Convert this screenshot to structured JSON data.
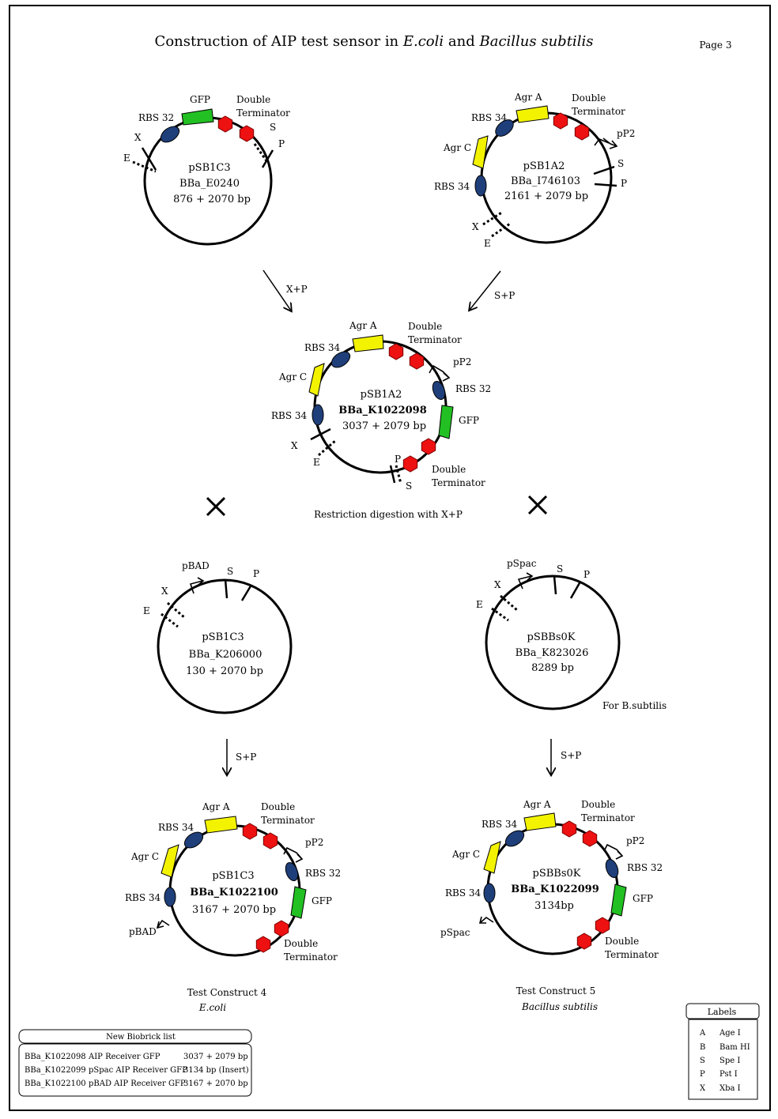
{
  "title": {
    "prefix": "Construction of AIP test sensor in",
    "org1": "E.coli",
    "conj": "and",
    "org2": "Bacillus subtilis"
  },
  "page_label": "Page 3",
  "plasmid1": {
    "backbone": "pSB1C3",
    "part": "BBa_E0240",
    "size": "876 + 2070 bp",
    "labels": {
      "gfp": "GFP",
      "rbs": "RBS 32",
      "term1": "Double",
      "term2": "Terminator",
      "x": "X",
      "e": "E",
      "s": "S",
      "p": "P"
    }
  },
  "plasmid2": {
    "backbone": "pSB1A2",
    "part": "BBa_I746103",
    "size": "2161 + 2079 bp",
    "labels": {
      "agra": "Agr A",
      "rbs34a": "RBS 34",
      "agrc": "Agr C",
      "rbs34b": "RBS 34",
      "term1": "Double",
      "term2": "Terminator",
      "pp2": "pP2",
      "s": "S",
      "p": "P",
      "x": "X",
      "e": "E"
    }
  },
  "arrow1_label": "X+P",
  "arrow2_label": "S+P",
  "plasmid3": {
    "backbone": "pSB1A2",
    "part": "BBa_K1022098",
    "size": "3037 + 2079 bp",
    "labels": {
      "agra": "Agr A",
      "rbs34a": "RBS 34",
      "agrc": "Agr C",
      "rbs34b": "RBS 34",
      "term1": "Double",
      "term2": "Terminator",
      "pp2": "pP2",
      "rbs32": "RBS 32",
      "gfp": "GFP",
      "term3": "Double",
      "term4": "Terminator",
      "x": "X",
      "e": "E",
      "p": "P",
      "s": "S"
    }
  },
  "digestion_label": "Restriction digestion with X+P",
  "plasmid4": {
    "backbone": "pSB1C3",
    "part": "BBa_K206000",
    "size": "130 + 2070 bp",
    "labels": {
      "pbad": "pBAD",
      "x": "X",
      "e": "E",
      "s": "S",
      "p": "P"
    }
  },
  "plasmid5": {
    "backbone": "pSBBs0K",
    "part": "BBa_K823026",
    "size": "8289 bp",
    "note": "For B.subtilis",
    "labels": {
      "pspac": "pSpac",
      "x": "X",
      "e": "E",
      "s": "S",
      "p": "P"
    }
  },
  "arrow3_label": "S+P",
  "arrow4_label": "S+P",
  "plasmid6": {
    "backbone": "pSB1C3",
    "part": "BBa_K1022100",
    "size": "3167 + 2070 bp",
    "labels": {
      "agra": "Agr A",
      "rbs34a": "RBS 34",
      "agrc": "Agr C",
      "rbs34b": "RBS 34",
      "pbad": "pBAD",
      "term1": "Double",
      "term2": "Terminator",
      "pp2": "pP2",
      "rbs32": "RBS 32",
      "gfp": "GFP",
      "term3": "Double",
      "term4": "Terminator"
    },
    "caption1": "Test Construct 4",
    "caption2": "E.coli"
  },
  "plasmid7": {
    "backbone": "pSBBs0K",
    "part": "BBa_K1022099",
    "size": "3134bp",
    "labels": {
      "agra": "Agr A",
      "rbs34a": "RBS 34",
      "agrc": "Agr C",
      "rbs34b": "RBS 34",
      "pspac": "pSpac",
      "term1": "Double",
      "term2": "Terminator",
      "pp2": "pP2",
      "rbs32": "RBS 32",
      "gfp": "GFP",
      "term3": "Double",
      "term4": "Terminator"
    },
    "caption1": "Test Construct 5",
    "caption2": "Bacillus subtilis"
  },
  "biobrick_list": {
    "header": "New Biobrick list",
    "rows": [
      {
        "id": "BBa_K1022098",
        "desc": "AIP Receiver GFP",
        "size": "3037 + 2079 bp"
      },
      {
        "id": "BBa_K1022099",
        "desc": "pSpac AIP Receiver GFP",
        "size": "3134 bp (Insert)"
      },
      {
        "id": "BBa_K1022100",
        "desc": "pBAD AIP Receiver GFP",
        "size": "3167 + 2070 bp"
      }
    ]
  },
  "labels_legend": {
    "header": "Labels",
    "rows": [
      {
        "key": "A",
        "value": "Age I"
      },
      {
        "key": "B",
        "value": "Bam HI"
      },
      {
        "key": "S",
        "value": "Spe I"
      },
      {
        "key": "P",
        "value": "Pst I"
      },
      {
        "key": "X",
        "value": "Xba I"
      }
    ]
  },
  "colors": {
    "gfp": "#22c022",
    "agr": "#f3f300",
    "rbs": "#1f3f7a",
    "terminator": "#ee1111"
  }
}
